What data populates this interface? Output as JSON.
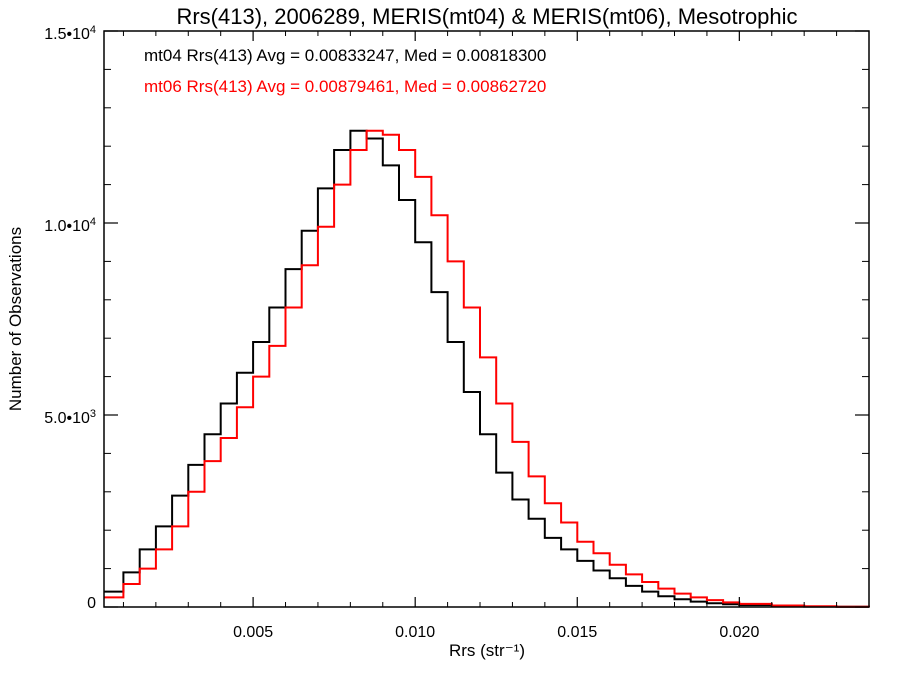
{
  "chart_data": {
    "type": "line",
    "step": true,
    "title": "Rrs(413), 2006289, MERIS(mt04) & MERIS(mt06), Mesotrophic",
    "xlabel": "Rrs (str⁻¹)",
    "ylabel": "Number of Observations",
    "xlim": [
      0.0004,
      0.024
    ],
    "ylim": [
      0,
      15000
    ],
    "xticks": [
      {
        "value": 0.005,
        "label": "0.005"
      },
      {
        "value": 0.01,
        "label": "0.010"
      },
      {
        "value": 0.015,
        "label": "0.015"
      },
      {
        "value": 0.02,
        "label": "0.020"
      }
    ],
    "yticks": [
      {
        "value": 0,
        "label": "0"
      },
      {
        "value": 5000,
        "label": "5.0•10",
        "exp": "3"
      },
      {
        "value": 10000,
        "label": "1.0•10",
        "exp": "4"
      },
      {
        "value": 15000,
        "label": "1.5•10",
        "exp": "4"
      }
    ],
    "annotations": [
      {
        "text": "mt04 Rrs(413) Avg = 0.00833247, Med = 0.00818300",
        "color": "#000000"
      },
      {
        "text": "mt06 Rrs(413) Avg = 0.00879461, Med = 0.00862720",
        "color": "#ff0000"
      }
    ],
    "series": [
      {
        "color": "#000000",
        "points": [
          [
            0.0004,
            400
          ],
          [
            0.001,
            900
          ],
          [
            0.0015,
            1500
          ],
          [
            0.002,
            2100
          ],
          [
            0.0025,
            2900
          ],
          [
            0.003,
            3700
          ],
          [
            0.0035,
            4500
          ],
          [
            0.004,
            5300
          ],
          [
            0.0045,
            6100
          ],
          [
            0.005,
            6900
          ],
          [
            0.0055,
            7800
          ],
          [
            0.006,
            8800
          ],
          [
            0.0065,
            9800
          ],
          [
            0.007,
            10900
          ],
          [
            0.0075,
            11900
          ],
          [
            0.008,
            12400
          ],
          [
            0.0085,
            12200
          ],
          [
            0.009,
            11500
          ],
          [
            0.0095,
            10600
          ],
          [
            0.01,
            9500
          ],
          [
            0.0105,
            8200
          ],
          [
            0.011,
            6900
          ],
          [
            0.0115,
            5600
          ],
          [
            0.012,
            4500
          ],
          [
            0.0125,
            3500
          ],
          [
            0.013,
            2800
          ],
          [
            0.0135,
            2300
          ],
          [
            0.014,
            1800
          ],
          [
            0.0145,
            1500
          ],
          [
            0.015,
            1200
          ],
          [
            0.0155,
            950
          ],
          [
            0.016,
            750
          ],
          [
            0.0165,
            550
          ],
          [
            0.017,
            400
          ],
          [
            0.0175,
            280
          ],
          [
            0.018,
            200
          ],
          [
            0.0185,
            140
          ],
          [
            0.019,
            100
          ],
          [
            0.0195,
            70
          ],
          [
            0.02,
            50
          ],
          [
            0.021,
            25
          ],
          [
            0.022,
            10
          ],
          [
            0.023,
            5
          ],
          [
            0.024,
            2
          ]
        ]
      },
      {
        "color": "#ff0000",
        "points": [
          [
            0.0004,
            250
          ],
          [
            0.001,
            600
          ],
          [
            0.0015,
            1000
          ],
          [
            0.002,
            1500
          ],
          [
            0.0025,
            2100
          ],
          [
            0.003,
            3000
          ],
          [
            0.0035,
            3800
          ],
          [
            0.004,
            4400
          ],
          [
            0.0045,
            5200
          ],
          [
            0.005,
            6000
          ],
          [
            0.0055,
            6800
          ],
          [
            0.006,
            7800
          ],
          [
            0.0065,
            8900
          ],
          [
            0.007,
            9900
          ],
          [
            0.0075,
            11000
          ],
          [
            0.008,
            11900
          ],
          [
            0.0085,
            12400
          ],
          [
            0.009,
            12300
          ],
          [
            0.0095,
            11900
          ],
          [
            0.01,
            11200
          ],
          [
            0.0105,
            10200
          ],
          [
            0.011,
            9000
          ],
          [
            0.0115,
            7800
          ],
          [
            0.012,
            6500
          ],
          [
            0.0125,
            5300
          ],
          [
            0.013,
            4300
          ],
          [
            0.0135,
            3400
          ],
          [
            0.014,
            2700
          ],
          [
            0.0145,
            2200
          ],
          [
            0.015,
            1700
          ],
          [
            0.0155,
            1400
          ],
          [
            0.016,
            1100
          ],
          [
            0.0165,
            850
          ],
          [
            0.017,
            650
          ],
          [
            0.0175,
            480
          ],
          [
            0.018,
            350
          ],
          [
            0.0185,
            250
          ],
          [
            0.019,
            180
          ],
          [
            0.0195,
            120
          ],
          [
            0.02,
            80
          ],
          [
            0.021,
            40
          ],
          [
            0.022,
            18
          ],
          [
            0.023,
            8
          ],
          [
            0.024,
            3
          ]
        ]
      }
    ]
  }
}
